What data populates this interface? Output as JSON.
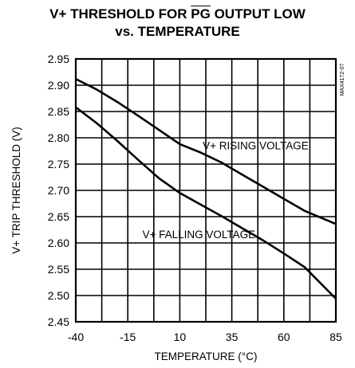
{
  "chart_data": {
    "type": "line",
    "title_parts": [
      "V+ THRESHOLD FOR ",
      "PG",
      " OUTPUT LOW"
    ],
    "subtitle": "vs. TEMPERATURE",
    "xlabel": "TEMPERATURE (°C)",
    "ylabel": "V+ TRIP THRESHOLD (V)",
    "xlim": [
      -40,
      85
    ],
    "ylim": [
      2.45,
      2.95
    ],
    "x_ticks": [
      -40,
      -15,
      10,
      35,
      60,
      85
    ],
    "y_ticks": [
      2.95,
      2.9,
      2.85,
      2.8,
      2.75,
      2.7,
      2.65,
      2.6,
      2.55,
      2.5,
      2.45
    ],
    "x_tick_labels": [
      "-40",
      "-15",
      "10",
      "35",
      "60",
      "85"
    ],
    "y_tick_labels": [
      "2.95",
      "2.90",
      "2.85",
      "2.80",
      "2.75",
      "2.70",
      "2.65",
      "2.60",
      "2.55",
      "2.50",
      "2.45"
    ],
    "grid": true,
    "series": [
      {
        "name": "V+ RISING VOLTAGE",
        "x": [
          -40,
          -30,
          -20,
          -10,
          0,
          10,
          20,
          30,
          40,
          50,
          60,
          70,
          85
        ],
        "y": [
          2.912,
          2.892,
          2.868,
          2.842,
          2.815,
          2.788,
          2.772,
          2.753,
          2.73,
          2.707,
          2.684,
          2.661,
          2.636
        ]
      },
      {
        "name": "V+ FALLING VOLTAGE",
        "x": [
          -40,
          -30,
          -20,
          -10,
          0,
          10,
          20,
          30,
          40,
          50,
          60,
          70,
          85
        ],
        "y": [
          2.858,
          2.828,
          2.794,
          2.758,
          2.723,
          2.695,
          2.673,
          2.651,
          2.628,
          2.605,
          2.58,
          2.554,
          2.494
        ]
      }
    ],
    "annotations": [
      {
        "text": "V+ RISING VOLTAGE",
        "x": 21,
        "y": 2.778
      },
      {
        "text": "V+ FALLING VOLTAGE",
        "x": -8,
        "y": 2.609
      }
    ],
    "side_code": "MAX4172-07"
  }
}
